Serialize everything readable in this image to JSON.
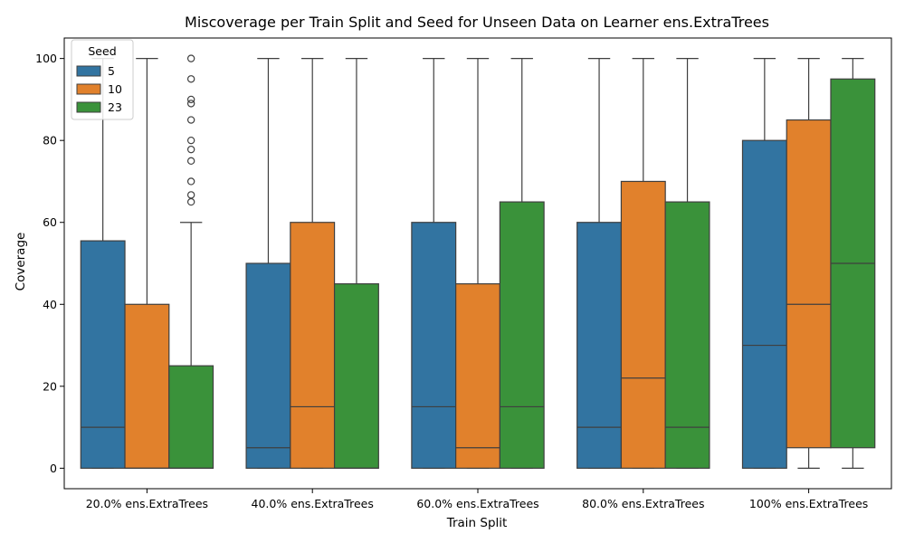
{
  "chart_data": {
    "type": "boxplot",
    "title": "Miscoverage per Train Split and Seed for Unseen Data on Learner ens.ExtraTrees",
    "xlabel": "Train Split",
    "ylabel": "Coverage",
    "categories": [
      "20.0% ens.ExtraTrees",
      "40.0% ens.ExtraTrees",
      "60.0% ens.ExtraTrees",
      "80.0% ens.ExtraTrees",
      "100% ens.ExtraTrees"
    ],
    "ylim": [
      -5,
      105
    ],
    "yticks": [
      0,
      20,
      40,
      60,
      80,
      100
    ],
    "legend": {
      "title": "Seed",
      "position": "top-left"
    },
    "series": [
      {
        "name": "5",
        "color": "#3274a1",
        "boxes": [
          {
            "whisker_low": 0,
            "q1": 0,
            "median": 10,
            "q3": 55.5,
            "whisker_high": 100,
            "outliers": []
          },
          {
            "whisker_low": 0,
            "q1": 0,
            "median": 5,
            "q3": 50,
            "whisker_high": 100,
            "outliers": []
          },
          {
            "whisker_low": 0,
            "q1": 0,
            "median": 15,
            "q3": 60,
            "whisker_high": 100,
            "outliers": []
          },
          {
            "whisker_low": 0,
            "q1": 0,
            "median": 10,
            "q3": 60,
            "whisker_high": 100,
            "outliers": []
          },
          {
            "whisker_low": 0,
            "q1": 0,
            "median": 30,
            "q3": 80,
            "whisker_high": 100,
            "outliers": []
          }
        ]
      },
      {
        "name": "10",
        "color": "#e1812c",
        "boxes": [
          {
            "whisker_low": 0,
            "q1": 0,
            "median": 0,
            "q3": 40,
            "whisker_high": 100,
            "outliers": []
          },
          {
            "whisker_low": 0,
            "q1": 0,
            "median": 15,
            "q3": 60,
            "whisker_high": 100,
            "outliers": []
          },
          {
            "whisker_low": 0,
            "q1": 0,
            "median": 5,
            "q3": 45,
            "whisker_high": 100,
            "outliers": []
          },
          {
            "whisker_low": 0,
            "q1": 0,
            "median": 22,
            "q3": 70,
            "whisker_high": 100,
            "outliers": []
          },
          {
            "whisker_low": 0,
            "q1": 5,
            "median": 40,
            "q3": 85,
            "whisker_high": 100,
            "outliers": []
          }
        ]
      },
      {
        "name": "23",
        "color": "#3a923a",
        "boxes": [
          {
            "whisker_low": 0,
            "q1": 0,
            "median": 0,
            "q3": 25,
            "whisker_high": 60,
            "outliers": [
              65,
              66.7,
              70,
              75,
              77.8,
              80,
              85,
              89,
              90,
              95,
              100
            ]
          },
          {
            "whisker_low": 0,
            "q1": 0,
            "median": 0,
            "q3": 45,
            "whisker_high": 100,
            "outliers": []
          },
          {
            "whisker_low": 0,
            "q1": 0,
            "median": 15,
            "q3": 65,
            "whisker_high": 100,
            "outliers": []
          },
          {
            "whisker_low": 0,
            "q1": 0,
            "median": 10,
            "q3": 65,
            "whisker_high": 100,
            "outliers": []
          },
          {
            "whisker_low": 0,
            "q1": 5,
            "median": 50,
            "q3": 95,
            "whisker_high": 100,
            "outliers": []
          }
        ]
      }
    ]
  }
}
